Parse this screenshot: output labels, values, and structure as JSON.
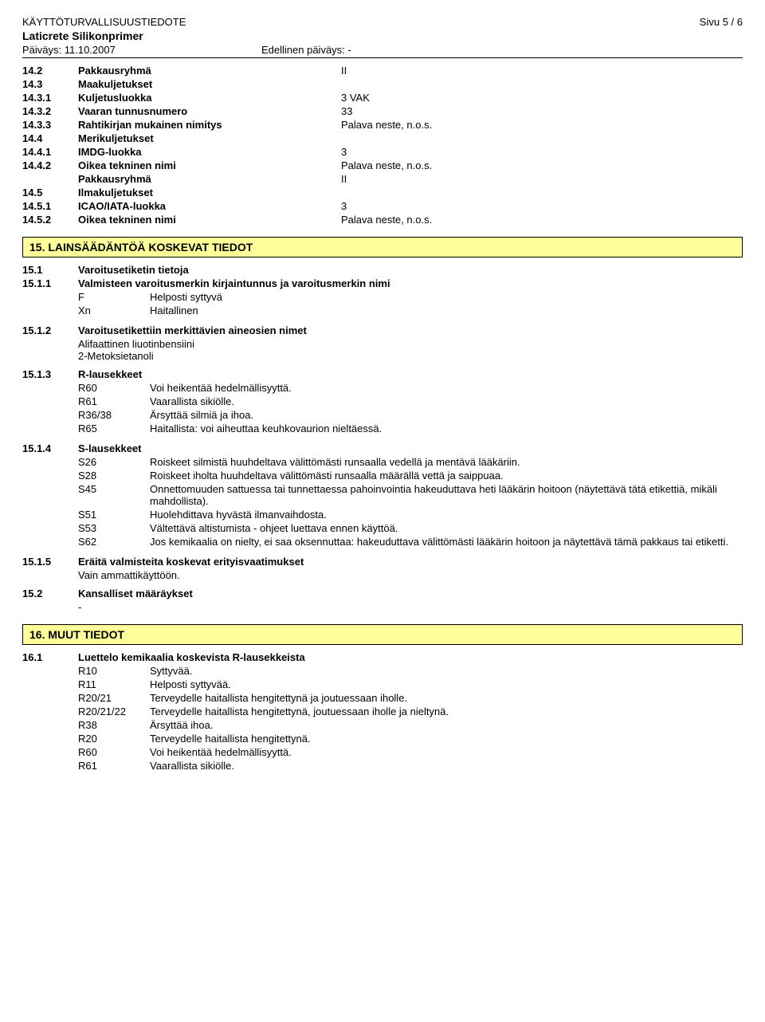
{
  "header": {
    "title": "KÄYTTÖTURVALLISUUSTIEDOTE",
    "page": "Sivu  5 / 6",
    "product": "Laticrete Silikonprimer",
    "date_label": "Päiväys: 11.10.2007",
    "prev_date": "Edellinen päiväys: -"
  },
  "s14": {
    "r1": {
      "no": "14.2",
      "label": "Pakkausryhmä",
      "val": "II"
    },
    "r2": {
      "no": "14.3",
      "label": "Maakuljetukset",
      "val": ""
    },
    "r3": {
      "no": "14.3.1",
      "label": "Kuljetusluokka",
      "val": "3  VAK"
    },
    "r4": {
      "no": "14.3.2",
      "label": "Vaaran tunnusnumero",
      "val": "33"
    },
    "r5": {
      "no": "14.3.3",
      "label": "Rahtikirjan mukainen nimitys",
      "val": "Palava neste, n.o.s."
    },
    "r6": {
      "no": "14.4",
      "label": "Merikuljetukset",
      "val": ""
    },
    "r7": {
      "no": "14.4.1",
      "label": "IMDG-luokka",
      "val": "3"
    },
    "r8": {
      "no": "14.4.2",
      "label": "Oikea tekninen nimi",
      "val": "Palava neste, n.o.s."
    },
    "r9": {
      "no": "",
      "label": "Pakkausryhmä",
      "val": "II"
    },
    "r10": {
      "no": "14.5",
      "label": "Ilmakuljetukset",
      "val": ""
    },
    "r11": {
      "no": "14.5.1",
      "label": "ICAO/IATA-luokka",
      "val": "3"
    },
    "r12": {
      "no": "14.5.2",
      "label": "Oikea tekninen nimi",
      "val": "Palava neste, n.o.s."
    }
  },
  "s15": {
    "title": "15. LAINSÄÄDÄNTÖÄ KOSKEVAT TIEDOT",
    "h1": {
      "no": "15.1",
      "label": "Varoitusetiketin tietoja"
    },
    "h11": {
      "no": "15.1.1",
      "label": "Valmisteen varoitusmerkin kirjaintunnus ja varoitusmerkin nimi"
    },
    "h11a": {
      "k": "F",
      "v": "Helposti syttyvä"
    },
    "h11b": {
      "k": "Xn",
      "v": "Haitallinen"
    },
    "h12": {
      "no": "15.1.2",
      "label": "Varoitusetikettiin merkittävien aineosien nimet"
    },
    "h12a": "Alifaattinen liuotinbensiini",
    "h12b": "2-Metoksietanoli",
    "h13": {
      "no": "15.1.3",
      "label": "R-lausekkeet"
    },
    "r": [
      {
        "k": "R60",
        "v": "Voi heikentää hedelmällisyyttä."
      },
      {
        "k": "R61",
        "v": "Vaarallista sikiölle."
      },
      {
        "k": "R36/38",
        "v": "Ärsyttää silmiä ja ihoa."
      },
      {
        "k": "R65",
        "v": "Haitallista: voi aiheuttaa keuhkovaurion nieltäessä."
      }
    ],
    "h14": {
      "no": "15.1.4",
      "label": "S-lausekkeet"
    },
    "s": [
      {
        "k": "S26",
        "v": "Roiskeet silmistä huuhdeltava välittömästi runsaalla vedellä ja mentävä lääkäriin."
      },
      {
        "k": "S28",
        "v": "Roiskeet iholta huuhdeltava välittömästi runsaalla määrällä vettä ja saippuaa."
      },
      {
        "k": "S45",
        "v": "Onnettomuuden sattuessa tai tunnettaessa pahoinvointia hakeuduttava heti lääkärin hoitoon (näytettävä tätä etikettiä, mikäli mahdollista)."
      },
      {
        "k": "S51",
        "v": "Huolehdittava hyvästä ilmanvaihdosta."
      },
      {
        "k": "S53",
        "v": "Vältettävä altistumista - ohjeet luettava ennen käyttöä."
      },
      {
        "k": "S62",
        "v": "Jos kemikaalia on nielty, ei saa oksennuttaa: hakeuduttava välittömästi lääkärin hoitoon ja näytettävä tämä pakkaus tai etiketti."
      }
    ],
    "h15": {
      "no": "15.1.5",
      "label": "Eräitä valmisteita koskevat erityisvaatimukset"
    },
    "h15a": "Vain ammattikäyttöön.",
    "h2": {
      "no": "15.2",
      "label": "Kansalliset määräykset"
    },
    "h2a": "-"
  },
  "s16": {
    "title": "16. MUUT TIEDOT",
    "h1": {
      "no": "16.1",
      "label": "Luettelo kemikaalia koskevista R-lausekkeista"
    },
    "r": [
      {
        "k": "R10",
        "v": "Syttyvää."
      },
      {
        "k": "R11",
        "v": "Helposti syttyvää."
      },
      {
        "k": "R20/21",
        "v": "Terveydelle haitallista hengitettynä ja joutuessaan iholle."
      },
      {
        "k": "R20/21/22",
        "v": "Terveydelle haitallista hengitettynä, joutuessaan iholle ja nieltynä."
      },
      {
        "k": "R38",
        "v": "Ärsyttää ihoa."
      },
      {
        "k": "R20",
        "v": "Terveydelle haitallista hengitettynä."
      },
      {
        "k": "R60",
        "v": "Voi heikentää hedelmällisyyttä."
      },
      {
        "k": "R61",
        "v": "Vaarallista sikiölle."
      }
    ]
  }
}
